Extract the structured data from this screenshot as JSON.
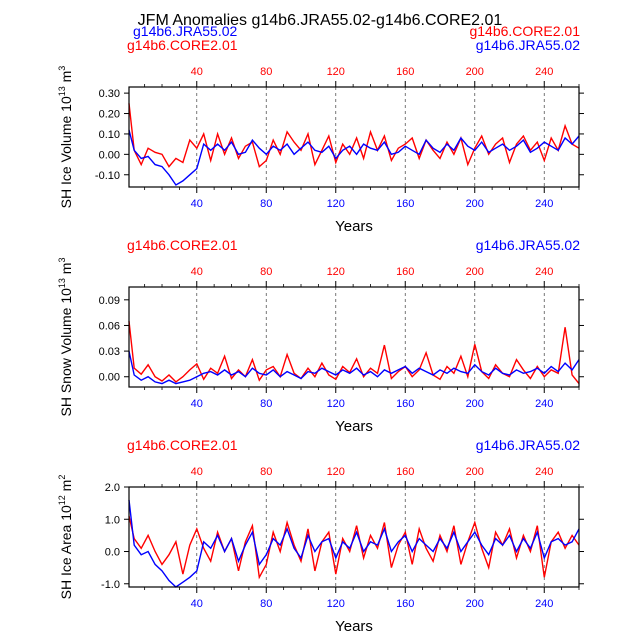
{
  "figure_title": "JFM Anomalies g14b6.JRA55.02-g14b6.CORE2.01",
  "x_axis_label": "Years",
  "colors": {
    "run_a": "#ff0000",
    "run_b": "#0000ff",
    "axis": "#000000"
  },
  "chart_data": [
    {
      "type": "line",
      "id": "ice-volume",
      "title": "",
      "xlabel": "Years",
      "ylabel_main": "SH Ice Volume 10",
      "ylabel_exp": "13",
      "ylabel_unit": " m",
      "ylabel_unit_exp": "3",
      "legend_left": [
        "g14b6.JRA55.02",
        "g14b6.CORE2.01"
      ],
      "legend_right": [
        "g14b6.CORE2.01",
        "g14b6.JRA55.02"
      ],
      "xlim": [
        1,
        260
      ],
      "ylim": [
        -0.16,
        0.33
      ],
      "yticks": [
        -0.1,
        0.0,
        0.1,
        0.2,
        0.3
      ],
      "ytick_labels": [
        "-0.10",
        "0.00",
        "0.10",
        "0.20",
        "0.30"
      ],
      "xticks": [
        40,
        80,
        120,
        160,
        200,
        240
      ],
      "xtick_labels": [
        "40",
        "80",
        "120",
        "160",
        "200",
        "240"
      ],
      "series": [
        {
          "name": "g14b6.CORE2.01",
          "color": "#ff0000",
          "x": [
            1,
            4,
            8,
            12,
            16,
            20,
            24,
            28,
            32,
            36,
            40,
            44,
            48,
            52,
            56,
            60,
            64,
            68,
            72,
            76,
            80,
            84,
            88,
            92,
            96,
            100,
            104,
            108,
            112,
            116,
            120,
            124,
            128,
            132,
            136,
            140,
            144,
            148,
            152,
            156,
            160,
            164,
            168,
            172,
            176,
            180,
            184,
            188,
            192,
            196,
            200,
            204,
            208,
            212,
            216,
            220,
            224,
            228,
            232,
            236,
            240,
            244,
            248,
            252,
            256,
            260
          ],
          "values": [
            0.25,
            0.02,
            -0.05,
            0.03,
            0.01,
            0.0,
            -0.06,
            -0.02,
            -0.04,
            0.07,
            0.03,
            0.1,
            -0.03,
            0.1,
            0.0,
            0.08,
            -0.02,
            0.04,
            0.06,
            -0.06,
            -0.03,
            0.07,
            0.0,
            0.11,
            0.06,
            0.02,
            0.1,
            -0.05,
            0.02,
            0.09,
            -0.04,
            0.05,
            0.0,
            0.08,
            -0.02,
            0.11,
            0.02,
            0.09,
            -0.03,
            0.03,
            0.05,
            0.08,
            -0.02,
            0.07,
            0.02,
            -0.02,
            0.06,
            0.0,
            0.08,
            -0.05,
            0.03,
            0.09,
            0.0,
            0.05,
            0.08,
            -0.04,
            0.05,
            0.09,
            0.02,
            0.06,
            -0.03,
            0.08,
            0.02,
            0.14,
            0.05,
            0.03
          ]
        },
        {
          "name": "g14b6.JRA55.02",
          "color": "#0000ff",
          "x": [
            1,
            4,
            8,
            12,
            16,
            20,
            24,
            28,
            32,
            36,
            40,
            44,
            48,
            52,
            56,
            60,
            64,
            68,
            72,
            76,
            80,
            84,
            88,
            92,
            96,
            100,
            104,
            108,
            112,
            116,
            120,
            124,
            128,
            132,
            136,
            140,
            144,
            148,
            152,
            156,
            160,
            164,
            168,
            172,
            176,
            180,
            184,
            188,
            192,
            196,
            200,
            204,
            208,
            212,
            216,
            220,
            224,
            228,
            232,
            236,
            240,
            244,
            248,
            252,
            256,
            260
          ],
          "values": [
            0.12,
            0.02,
            -0.02,
            -0.01,
            -0.05,
            -0.06,
            -0.1,
            -0.15,
            -0.13,
            -0.1,
            -0.07,
            0.05,
            0.02,
            0.05,
            0.02,
            0.06,
            0.0,
            0.01,
            0.07,
            0.03,
            0.0,
            0.04,
            0.02,
            0.05,
            0.0,
            0.03,
            0.06,
            0.02,
            0.01,
            0.04,
            -0.02,
            0.02,
            0.04,
            0.0,
            0.05,
            0.03,
            0.02,
            0.06,
            0.0,
            0.01,
            0.04,
            0.02,
            0.0,
            0.07,
            0.03,
            0.01,
            0.05,
            0.02,
            0.08,
            0.04,
            0.02,
            0.06,
            0.01,
            0.03,
            0.05,
            0.02,
            0.04,
            0.07,
            0.01,
            0.03,
            0.06,
            0.04,
            0.02,
            0.08,
            0.05,
            0.09
          ]
        }
      ]
    },
    {
      "type": "line",
      "id": "snow-volume",
      "title": "",
      "xlabel": "Years",
      "ylabel_main": "SH Snow Volume 10",
      "ylabel_exp": "13",
      "ylabel_unit": " m",
      "ylabel_unit_exp": "3",
      "legend_left": [
        "g14b6.CORE2.01"
      ],
      "legend_right": [
        "g14b6.JRA55.02"
      ],
      "xlim": [
        1,
        260
      ],
      "ylim": [
        -0.012,
        0.105
      ],
      "yticks": [
        0.0,
        0.03,
        0.06,
        0.09
      ],
      "ytick_labels": [
        "0.00",
        "0.03",
        "0.06",
        "0.09"
      ],
      "xticks": [
        40,
        80,
        120,
        160,
        200,
        240
      ],
      "xtick_labels": [
        "40",
        "80",
        "120",
        "160",
        "200",
        "240"
      ],
      "series": [
        {
          "name": "g14b6.CORE2.01",
          "color": "#ff0000",
          "x": [
            1,
            4,
            8,
            12,
            16,
            20,
            24,
            28,
            32,
            36,
            40,
            44,
            48,
            52,
            56,
            60,
            64,
            68,
            72,
            76,
            80,
            84,
            88,
            92,
            96,
            100,
            104,
            108,
            112,
            116,
            120,
            124,
            128,
            132,
            136,
            140,
            144,
            148,
            152,
            156,
            160,
            164,
            168,
            172,
            176,
            180,
            184,
            188,
            192,
            196,
            200,
            204,
            208,
            212,
            216,
            220,
            224,
            228,
            232,
            236,
            240,
            244,
            248,
            252,
            256,
            260
          ],
          "values": [
            0.065,
            0.01,
            0.003,
            0.014,
            0.0,
            -0.005,
            0.002,
            -0.006,
            0.0,
            0.008,
            0.015,
            -0.003,
            0.01,
            0.004,
            0.024,
            -0.002,
            0.008,
            0.0,
            0.02,
            -0.004,
            0.008,
            0.012,
            0.0,
            0.026,
            0.004,
            -0.002,
            0.01,
            0.0,
            0.016,
            0.002,
            -0.003,
            0.012,
            0.005,
            0.021,
            0.0,
            0.01,
            0.004,
            0.037,
            -0.002,
            0.006,
            0.012,
            0.0,
            0.008,
            0.028,
            0.002,
            -0.003,
            0.012,
            0.004,
            0.024,
            0.0,
            0.038,
            0.006,
            -0.002,
            0.014,
            0.004,
            0.0,
            0.02,
            0.008,
            -0.002,
            0.012,
            0.0,
            0.008,
            0.004,
            0.058,
            0.002,
            -0.008
          ]
        },
        {
          "name": "g14b6.JRA55.02",
          "color": "#0000ff",
          "x": [
            1,
            4,
            8,
            12,
            16,
            20,
            24,
            28,
            32,
            36,
            40,
            44,
            48,
            52,
            56,
            60,
            64,
            68,
            72,
            76,
            80,
            84,
            88,
            92,
            96,
            100,
            104,
            108,
            112,
            116,
            120,
            124,
            128,
            132,
            136,
            140,
            144,
            148,
            152,
            156,
            160,
            164,
            168,
            172,
            176,
            180,
            184,
            188,
            192,
            196,
            200,
            204,
            208,
            212,
            216,
            220,
            224,
            228,
            232,
            236,
            240,
            244,
            248,
            252,
            256,
            260
          ],
          "values": [
            0.03,
            0.002,
            -0.004,
            0.0,
            -0.006,
            -0.008,
            -0.004,
            -0.008,
            -0.006,
            -0.004,
            0.0,
            0.004,
            0.006,
            0.002,
            0.008,
            0.002,
            0.006,
            0.0,
            0.01,
            0.004,
            0.002,
            0.008,
            0.0,
            0.006,
            0.002,
            -0.002,
            0.006,
            0.004,
            0.01,
            0.006,
            0.002,
            0.008,
            0.004,
            0.01,
            0.002,
            0.006,
            0.0,
            0.008,
            0.004,
            0.008,
            0.012,
            0.004,
            0.01,
            0.006,
            0.002,
            0.008,
            0.004,
            0.01,
            0.006,
            0.004,
            0.014,
            0.006,
            0.002,
            0.01,
            0.004,
            0.002,
            0.008,
            0.004,
            0.006,
            0.01,
            0.004,
            0.012,
            0.006,
            0.016,
            0.008,
            0.02
          ]
        }
      ]
    },
    {
      "type": "line",
      "id": "ice-area",
      "title": "",
      "xlabel": "Years",
      "ylabel_main": "SH Ice Area 10",
      "ylabel_exp": "12",
      "ylabel_unit": " m",
      "ylabel_unit_exp": "2",
      "legend_left": [
        "g14b6.CORE2.01"
      ],
      "legend_right": [
        "g14b6.JRA55.02"
      ],
      "xlim": [
        1,
        260
      ],
      "ylim": [
        -1.1,
        2.0
      ],
      "yticks": [
        -1.0,
        0.0,
        1.0,
        2.0
      ],
      "ytick_labels": [
        "-1.0",
        "0.0",
        "1.0",
        "2.0"
      ],
      "xticks": [
        40,
        80,
        120,
        160,
        200,
        240
      ],
      "xtick_labels": [
        "40",
        "80",
        "120",
        "160",
        "200",
        "240"
      ],
      "series": [
        {
          "name": "g14b6.CORE2.01",
          "color": "#ff0000",
          "x": [
            1,
            4,
            8,
            12,
            16,
            20,
            24,
            28,
            32,
            36,
            40,
            44,
            48,
            52,
            56,
            60,
            64,
            68,
            72,
            76,
            80,
            84,
            88,
            92,
            96,
            100,
            104,
            108,
            112,
            116,
            120,
            124,
            128,
            132,
            136,
            140,
            144,
            148,
            152,
            156,
            160,
            164,
            168,
            172,
            176,
            180,
            184,
            188,
            192,
            196,
            200,
            204,
            208,
            212,
            216,
            220,
            224,
            228,
            232,
            236,
            240,
            244,
            248,
            252,
            256,
            260
          ],
          "values": [
            1.1,
            0.4,
            0.1,
            0.5,
            0.0,
            -0.4,
            -0.1,
            0.3,
            -0.7,
            0.2,
            0.7,
            0.1,
            -0.3,
            0.6,
            0.0,
            0.4,
            -0.6,
            0.3,
            0.8,
            -0.8,
            -0.4,
            0.6,
            0.0,
            0.9,
            0.2,
            -0.3,
            0.7,
            -0.6,
            0.3,
            0.6,
            -0.7,
            0.4,
            0.0,
            0.8,
            -0.2,
            0.5,
            0.1,
            0.9,
            -0.5,
            0.2,
            0.6,
            -0.4,
            0.7,
            0.1,
            -0.3,
            0.5,
            0.0,
            0.8,
            -0.4,
            0.3,
            0.9,
            0.1,
            -0.5,
            0.6,
            0.2,
            0.7,
            -0.2,
            0.5,
            0.0,
            0.8,
            -0.8,
            0.3,
            0.6,
            0.1,
            0.5,
            0.2
          ]
        },
        {
          "name": "g14b6.JRA55.02",
          "color": "#0000ff",
          "x": [
            1,
            4,
            8,
            12,
            16,
            20,
            24,
            28,
            32,
            36,
            40,
            44,
            48,
            52,
            56,
            60,
            64,
            68,
            72,
            76,
            80,
            84,
            88,
            92,
            96,
            100,
            104,
            108,
            112,
            116,
            120,
            124,
            128,
            132,
            136,
            140,
            144,
            148,
            152,
            156,
            160,
            164,
            168,
            172,
            176,
            180,
            184,
            188,
            192,
            196,
            200,
            204,
            208,
            212,
            216,
            220,
            224,
            228,
            232,
            236,
            240,
            244,
            248,
            252,
            256,
            260
          ],
          "values": [
            1.6,
            0.2,
            -0.1,
            0.0,
            -0.4,
            -0.6,
            -0.9,
            -1.1,
            -0.95,
            -0.8,
            -0.6,
            0.3,
            0.1,
            0.5,
            0.0,
            0.4,
            -0.3,
            0.2,
            0.6,
            -0.4,
            -0.1,
            0.4,
            0.2,
            0.7,
            0.1,
            -0.2,
            0.5,
            0.0,
            0.3,
            0.4,
            -0.2,
            0.3,
            0.1,
            0.6,
            0.0,
            0.3,
            0.2,
            0.7,
            0.0,
            0.3,
            0.5,
            0.0,
            0.4,
            0.2,
            0.0,
            0.4,
            0.1,
            0.6,
            0.0,
            0.3,
            0.6,
            0.2,
            -0.1,
            0.4,
            0.2,
            0.5,
            0.0,
            0.4,
            0.1,
            0.6,
            -0.2,
            0.3,
            0.4,
            0.2,
            0.3,
            0.7
          ]
        }
      ]
    }
  ]
}
